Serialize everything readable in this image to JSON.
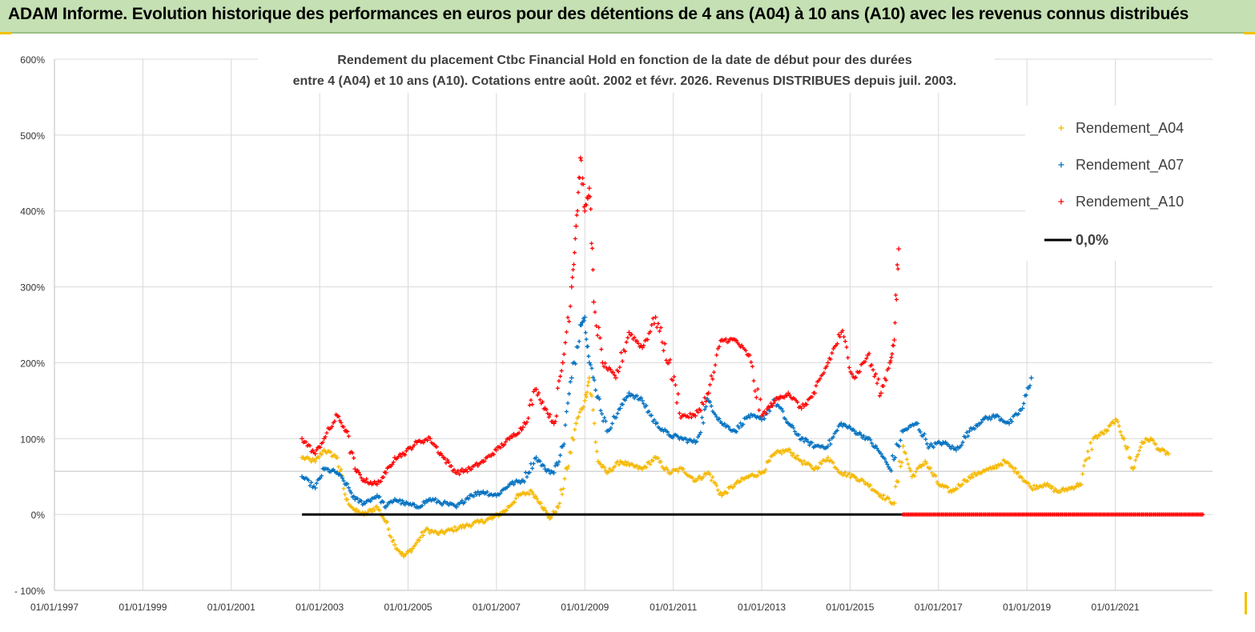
{
  "banner": {
    "title": "ADAM Informe. Evolution historique des performances en euros pour des détentions de 4 ans (A04) à 10 ans (A10) avec les revenus connus distribués"
  },
  "colors": {
    "banner_bg": "#c5e0b3",
    "a04": "#f5b800",
    "a07": "#0070c0",
    "a10": "#ff0000",
    "zero_line": "#000000",
    "grid": "#d9d9d9"
  },
  "chart_data": {
    "type": "scatter",
    "title_lines": [
      "Rendement du placement Ctbc Financial Hold   en fonction de la date de début pour des durées",
      "entre 4 (A04) et 10 ans (A10).  Cotations entre août. 2002 et févr. 2026. Revenus DISTRIBUES depuis juil. 2003."
    ],
    "x_ticks": [
      "01/01/1997",
      "01/01/1999",
      "01/01/2001",
      "01/01/2003",
      "01/01/2005",
      "01/01/2007",
      "01/01/2009",
      "01/01/2011",
      "01/01/2013",
      "01/01/2015",
      "01/01/2017",
      "01/01/2019",
      "01/01/2021"
    ],
    "x_range_years": [
      1997.0,
      2023.2
    ],
    "y_ticks": [
      "600%",
      "500%",
      "400%",
      "300%",
      "200%",
      "100%",
      "0%",
      "- 100%"
    ],
    "y_range": [
      -100,
      600
    ],
    "grid": true,
    "legend_position": "top-right",
    "legend": [
      "Rendement_A04",
      "Rendement_A07",
      "Rendement_A10",
      "0,0%"
    ],
    "series": [
      {
        "name": "Rendement_A04",
        "color": "#f5b800",
        "x": [
          2002.6,
          2002.9,
          2003.1,
          2003.4,
          2003.6,
          2003.8,
          2004.0,
          2004.3,
          2004.5,
          2004.7,
          2004.9,
          2005.1,
          2005.4,
          2005.7,
          2006.0,
          2006.3,
          2006.6,
          2006.9,
          2007.2,
          2007.5,
          2007.8,
          2008.0,
          2008.2,
          2008.4,
          2008.6,
          2008.8,
          2009.0,
          2009.1,
          2009.3,
          2009.5,
          2009.8,
          2010.0,
          2010.3,
          2010.6,
          2010.9,
          2011.2,
          2011.5,
          2011.8,
          2012.1,
          2012.4,
          2012.7,
          2013.0,
          2013.3,
          2013.6,
          2013.9,
          2014.2,
          2014.5,
          2014.8,
          2015.1,
          2015.4,
          2015.7,
          2016.0,
          2016.2,
          2016.4,
          2016.7,
          2017.0,
          2017.3,
          2017.6,
          2017.9,
          2018.2,
          2018.5,
          2018.8,
          2019.1,
          2019.4,
          2019.7,
          2020.0,
          2020.2,
          2020.5,
          2020.8,
          2021.0,
          2021.2,
          2021.4,
          2021.6,
          2021.8,
          2022.0,
          2022.2
        ],
        "y": [
          75,
          70,
          85,
          75,
          20,
          5,
          0,
          10,
          -10,
          -40,
          -55,
          -45,
          -20,
          -25,
          -20,
          -15,
          -10,
          -5,
          5,
          25,
          30,
          15,
          -5,
          10,
          60,
          120,
          150,
          180,
          70,
          55,
          70,
          65,
          60,
          75,
          55,
          60,
          45,
          55,
          25,
          40,
          50,
          55,
          80,
          85,
          70,
          60,
          75,
          55,
          50,
          40,
          25,
          15,
          90,
          50,
          70,
          40,
          30,
          45,
          55,
          60,
          70,
          55,
          35,
          40,
          30,
          35,
          40,
          100,
          110,
          125,
          100,
          60,
          95,
          100,
          85,
          80
        ]
      },
      {
        "name": "Rendement_A07",
        "color": "#0070c0",
        "x": [
          2002.6,
          2002.9,
          2003.1,
          2003.4,
          2003.6,
          2003.8,
          2004.0,
          2004.3,
          2004.5,
          2004.7,
          2004.9,
          2005.2,
          2005.5,
          2005.8,
          2006.1,
          2006.4,
          2006.7,
          2007.0,
          2007.3,
          2007.6,
          2007.9,
          2008.1,
          2008.3,
          2008.5,
          2008.7,
          2008.9,
          2009.0,
          2009.1,
          2009.3,
          2009.5,
          2009.8,
          2010.0,
          2010.3,
          2010.6,
          2010.9,
          2011.2,
          2011.5,
          2011.8,
          2012.1,
          2012.4,
          2012.7,
          2013.0,
          2013.3,
          2013.6,
          2013.9,
          2014.2,
          2014.5,
          2014.8,
          2015.1,
          2015.4,
          2015.7,
          2015.9,
          2016.2,
          2016.5,
          2016.8,
          2017.1,
          2017.4,
          2017.7,
          2018.0,
          2018.3,
          2018.6,
          2018.9,
          2019.1
        ],
        "y": [
          50,
          35,
          60,
          55,
          40,
          20,
          15,
          25,
          10,
          20,
          15,
          10,
          20,
          15,
          10,
          25,
          30,
          25,
          40,
          45,
          75,
          60,
          55,
          90,
          180,
          250,
          260,
          200,
          155,
          110,
          140,
          160,
          150,
          120,
          105,
          100,
          95,
          150,
          120,
          110,
          130,
          125,
          150,
          120,
          100,
          90,
          90,
          120,
          110,
          100,
          80,
          60,
          110,
          120,
          90,
          95,
          85,
          110,
          125,
          130,
          120,
          140,
          180
        ]
      },
      {
        "name": "Rendement_A10",
        "color": "#ff0000",
        "x": [
          2002.6,
          2002.9,
          2003.1,
          2003.4,
          2003.6,
          2003.8,
          2004.0,
          2004.3,
          2004.5,
          2004.7,
          2004.9,
          2005.2,
          2005.5,
          2005.8,
          2006.1,
          2006.4,
          2006.7,
          2007.0,
          2007.3,
          2007.6,
          2007.9,
          2008.1,
          2008.3,
          2008.5,
          2008.7,
          2008.8,
          2008.9,
          2009.0,
          2009.1,
          2009.2,
          2009.4,
          2009.7,
          2010.0,
          2010.3,
          2010.6,
          2010.9,
          2011.2,
          2011.5,
          2011.8,
          2012.1,
          2012.4,
          2012.7,
          2013.0,
          2013.3,
          2013.6,
          2013.9,
          2014.2,
          2014.5,
          2014.8,
          2015.1,
          2015.4,
          2015.7,
          2015.9,
          2016.0,
          2016.1
        ],
        "y": [
          100,
          80,
          100,
          130,
          110,
          60,
          45,
          40,
          55,
          75,
          80,
          95,
          100,
          75,
          55,
          60,
          70,
          85,
          100,
          115,
          165,
          140,
          120,
          200,
          300,
          380,
          470,
          400,
          430,
          280,
          200,
          180,
          240,
          220,
          260,
          200,
          130,
          130,
          160,
          230,
          230,
          210,
          130,
          150,
          160,
          140,
          160,
          200,
          240,
          180,
          210,
          160,
          200,
          230,
          350
        ]
      },
      {
        "name": "0,0%",
        "color": "#000000",
        "segments": [
          {
            "from": 2002.6,
            "to": 2016.2,
            "y": 0,
            "color": "#000000"
          },
          {
            "from": 2016.2,
            "to": 2023.0,
            "y": 0,
            "color": "#ff0000"
          }
        ]
      }
    ]
  }
}
